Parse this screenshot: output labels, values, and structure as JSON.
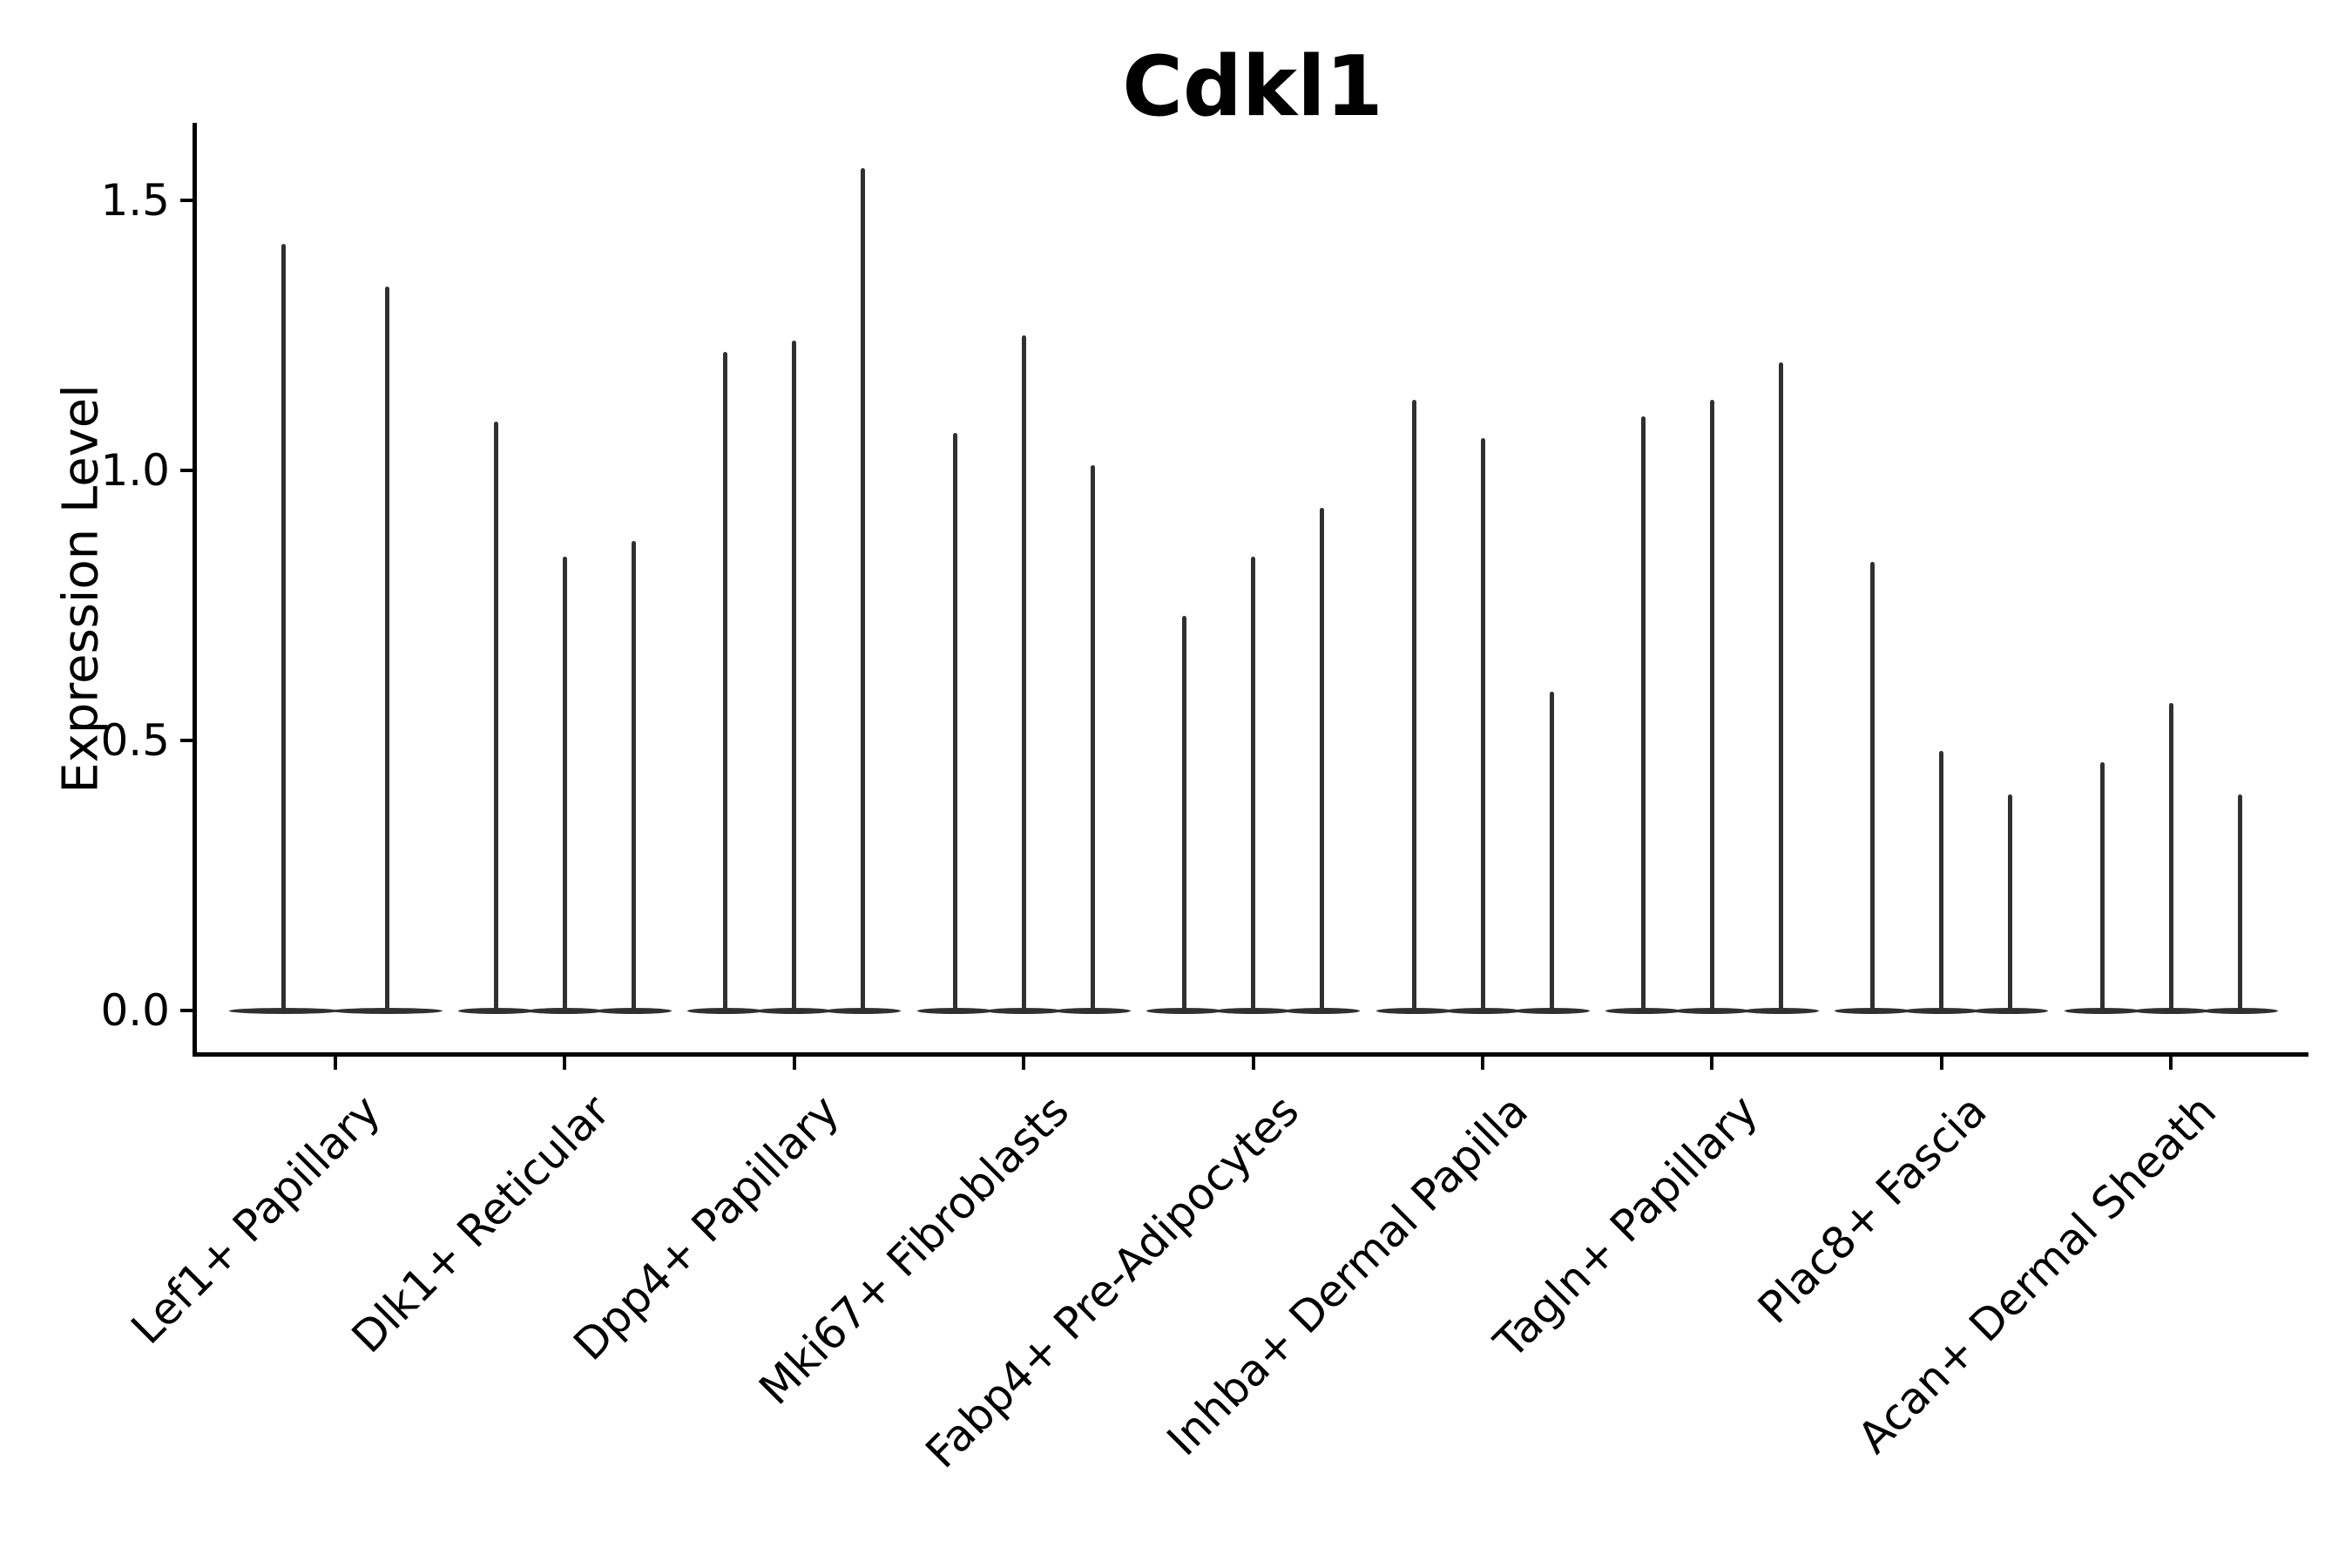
{
  "chart_data": {
    "type": "violin",
    "title": "Cdkl1",
    "ylabel": "Expression Level",
    "xlabel": "",
    "ytick_labels": [
      "0.0",
      "0.5",
      "1.0",
      "1.5"
    ],
    "ytick_values": [
      0.0,
      0.5,
      1.0,
      1.5
    ],
    "ylim": [
      -0.08,
      1.64
    ],
    "grid": false,
    "legend": "none",
    "ink_color": "#303030",
    "axis_color": "#000000",
    "background_color": "#ffffff",
    "groups": [
      {
        "label": "Lef1+ Papillary",
        "violin_max": [
          1.42,
          1.34
        ]
      },
      {
        "label": "Dlk1+ Reticular",
        "violin_max": [
          1.09,
          0.84,
          0.87
        ]
      },
      {
        "label": "Dpp4+ Papillary",
        "violin_max": [
          1.22,
          1.24,
          1.56
        ]
      },
      {
        "label": "Mki67+ Fibroblasts",
        "violin_max": [
          1.07,
          1.25,
          1.01
        ]
      },
      {
        "label": "Fabp4+ Pre-Adipocytes",
        "violin_max": [
          0.73,
          0.84,
          0.93
        ]
      },
      {
        "label": "Inhba+ Dermal Papilla",
        "violin_max": [
          1.13,
          1.06,
          0.59
        ]
      },
      {
        "label": "Tagln+ Papillary",
        "violin_max": [
          1.1,
          1.13,
          1.2
        ]
      },
      {
        "label": "Plac8+ Fascia",
        "violin_max": [
          0.83,
          0.48,
          0.4
        ]
      },
      {
        "label": "Acan+ Dermal Sheath",
        "violin_max": [
          0.46,
          0.57,
          0.4
        ]
      }
    ]
  }
}
